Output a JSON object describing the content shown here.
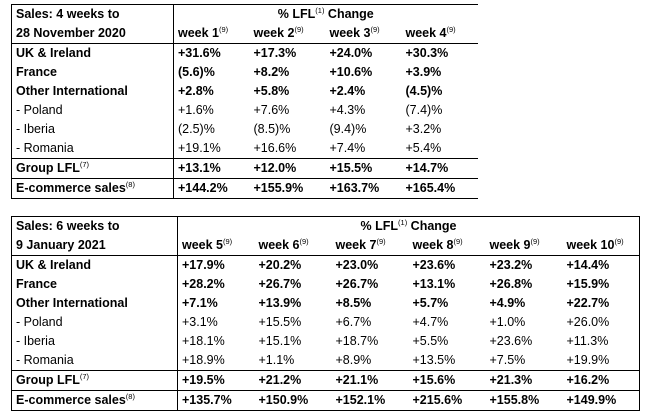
{
  "table1": {
    "title_line1": "Sales: 4 weeks to",
    "title_line2": "28 November 2020",
    "lfl_label": "% LFL",
    "lfl_sup": "(1)",
    "lfl_suffix": " Change",
    "week_sup": "(9)",
    "weeks": [
      "week 1",
      "week 2",
      "week 3",
      "week 4"
    ],
    "rows": [
      {
        "label": "UK & Ireland",
        "values": [
          "+31.6%",
          "+17.3%",
          "+24.0%",
          "+30.3%"
        ]
      },
      {
        "label": "France",
        "values": [
          "(5.6)%",
          "+8.2%",
          "+10.6%",
          "+3.9%"
        ]
      },
      {
        "label": "Other International",
        "values": [
          "+2.8%",
          "+5.8%",
          "+2.4%",
          "(4.5)%"
        ]
      },
      {
        "label": "- Poland",
        "values": [
          "+1.6%",
          "+7.6%",
          "+4.3%",
          "(7.4)%"
        ]
      },
      {
        "label": "- Iberia",
        "values": [
          "(2.5)%",
          "(8.5)%",
          "(9.4)%",
          "+3.2%"
        ]
      },
      {
        "label": "- Romania",
        "values": [
          "+19.1%",
          "+16.6%",
          "+7.4%",
          "+5.4%"
        ]
      },
      {
        "label": "Group LFL",
        "sup": "(7)",
        "values": [
          "+13.1%",
          "+12.0%",
          "+15.5%",
          "+14.7%"
        ]
      },
      {
        "label": "E-commerce sales",
        "sup": "(8)",
        "values": [
          "+144.2%",
          "+155.9%",
          "+163.7%",
          "+165.4%"
        ]
      }
    ]
  },
  "table2": {
    "title_line1": "Sales: 6 weeks to",
    "title_line2": "9 January 2021",
    "lfl_label": "% LFL",
    "lfl_sup": "(1)",
    "lfl_suffix": " Change",
    "week_sup": "(9)",
    "weeks": [
      "week 5",
      "week 6",
      "week 7",
      "week 8",
      "week 9",
      "week 10"
    ],
    "rows": [
      {
        "label": "UK & Ireland",
        "values": [
          "+17.9%",
          "+20.2%",
          "+23.0%",
          "+23.6%",
          "+23.2%",
          "+14.4%"
        ]
      },
      {
        "label": "France",
        "values": [
          "+28.2%",
          "+26.7%",
          "+26.7%",
          "+13.1%",
          "+26.8%",
          "+15.9%"
        ]
      },
      {
        "label": "Other International",
        "values": [
          "+7.1%",
          "+13.9%",
          "+8.5%",
          "+5.7%",
          "+4.9%",
          "+22.7%"
        ]
      },
      {
        "label": "- Poland",
        "values": [
          "+3.1%",
          "+15.5%",
          "+6.7%",
          "+4.7%",
          "+1.0%",
          "+26.0%"
        ]
      },
      {
        "label": "- Iberia",
        "values": [
          "+18.1%",
          "+15.1%",
          "+18.7%",
          "+5.5%",
          "+23.6%",
          "+11.3%"
        ]
      },
      {
        "label": "- Romania",
        "values": [
          "+18.9%",
          "+1.1%",
          "+8.9%",
          "+13.5%",
          "+7.5%",
          "+19.9%"
        ]
      },
      {
        "label": "Group LFL",
        "sup": "(7)",
        "values": [
          "+19.5%",
          "+21.2%",
          "+21.1%",
          "+15.6%",
          "+21.3%",
          "+16.2%"
        ]
      },
      {
        "label": "E-commerce sales",
        "sup": "(8)",
        "values": [
          "+135.7%",
          "+150.9%",
          "+152.1%",
          "+215.6%",
          "+155.8%",
          "+149.9%"
        ]
      }
    ]
  }
}
